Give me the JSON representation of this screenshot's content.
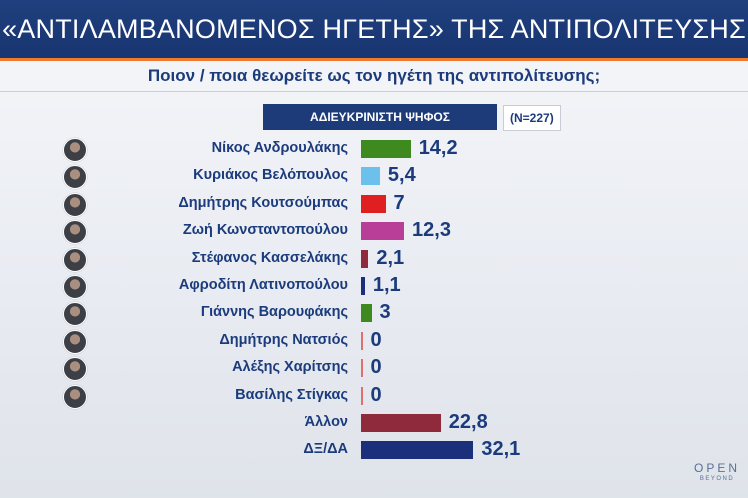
{
  "header": {
    "title": "«ΑΝΤΙΛΑΜΒΑΝΟΜΕΝΟΣ ΗΓΕΤΗΣ» ΤΗΣ ΑΝΤΙΠΟΛΙΤΕΥΣΗΣ",
    "subtitle": "Ποιον / ποια θεωρείτε ως τον ηγέτη της αντιπολίτευσης;"
  },
  "legend": {
    "label": "ΑΔΙΕΥΚΡΙΝΙΣΤΗ ΨΗΦΟΣ",
    "sample": "(N=227)"
  },
  "logo": {
    "line1": "OPEN",
    "line2": "BEYOND"
  },
  "chart_data": {
    "type": "bar",
    "orientation": "horizontal",
    "categories": [
      "Νίκος Ανδρουλάκης",
      "Κυριάκος Βελόπουλος",
      "Δημήτρης Κουτσούμπας",
      "Ζωή Κωνσταντοπούλου",
      "Στέφανος Κασσελάκης",
      "Αφροδίτη Λατινοπούλου",
      "Γιάννης Βαρουφάκης",
      "Δημήτρης Νατσιός",
      "Αλέξης Χαρίτσης",
      "Βασίλης Στίγκας",
      "Άλλον",
      "ΔΞ/ΔΑ"
    ],
    "values": [
      14.2,
      5.4,
      7,
      12.3,
      2.1,
      1.1,
      3,
      0,
      0,
      0,
      22.8,
      32.1
    ],
    "value_labels": [
      "14,2",
      "5,4",
      "7",
      "12,3",
      "2,1",
      "1,1",
      "3",
      "0",
      "0",
      "0",
      "22,8",
      "32,1"
    ],
    "colors": [
      "#3f8a1f",
      "#6cc0ec",
      "#e02020",
      "#b83e98",
      "#8f2a3c",
      "#1b2f7a",
      "#3f8a1f",
      "#e07070",
      "#e07070",
      "#e07070",
      "#8f2a3c",
      "#1b2f7a"
    ],
    "has_avatar": [
      true,
      true,
      true,
      true,
      true,
      true,
      true,
      true,
      true,
      true,
      false,
      false
    ],
    "grid": false
  }
}
